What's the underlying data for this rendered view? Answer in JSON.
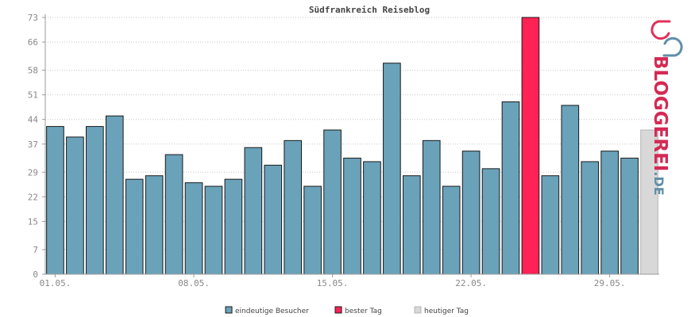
{
  "chart_data": {
    "type": "bar",
    "title": "Südfrankreich Reiseblog",
    "ylim": [
      0,
      73
    ],
    "yticks": [
      0,
      7,
      15,
      22,
      29,
      37,
      44,
      51,
      58,
      66,
      73
    ],
    "xtick_labels": [
      {
        "label": "01.05.",
        "index": 0
      },
      {
        "label": "08.05.",
        "index": 7
      },
      {
        "label": "15.05.",
        "index": 14
      },
      {
        "label": "22.05.",
        "index": 21
      },
      {
        "label": "29.05.",
        "index": 28
      }
    ],
    "values": [
      42,
      39,
      42,
      45,
      27,
      28,
      34,
      26,
      25,
      27,
      36,
      31,
      38,
      25,
      41,
      33,
      32,
      60,
      28,
      38,
      25,
      35,
      30,
      49,
      73,
      28,
      48,
      32,
      35,
      33,
      41
    ],
    "kinds": [
      "v",
      "v",
      "v",
      "v",
      "v",
      "v",
      "v",
      "v",
      "v",
      "v",
      "v",
      "v",
      "v",
      "v",
      "v",
      "v",
      "v",
      "v",
      "v",
      "v",
      "v",
      "v",
      "v",
      "v",
      "best",
      "v",
      "v",
      "v",
      "v",
      "v",
      "today"
    ],
    "grid": true,
    "legend_position": "bottom",
    "legend": [
      {
        "label": "eindeutige Besucher",
        "kind": "v"
      },
      {
        "label": "bester Tag",
        "kind": "best"
      },
      {
        "label": "heutiger Tag",
        "kind": "today"
      }
    ]
  },
  "colors": {
    "v": "#6aa2ba",
    "best": "#ff2255",
    "today": "#d8d8d8",
    "bar_border": "#1a1a1a",
    "today_border": "#b5b5b5",
    "grid": "#c8c8c8",
    "axis": "#999999"
  },
  "logo": {
    "text": "BLOGGEREI",
    "suffix": ".DE"
  }
}
